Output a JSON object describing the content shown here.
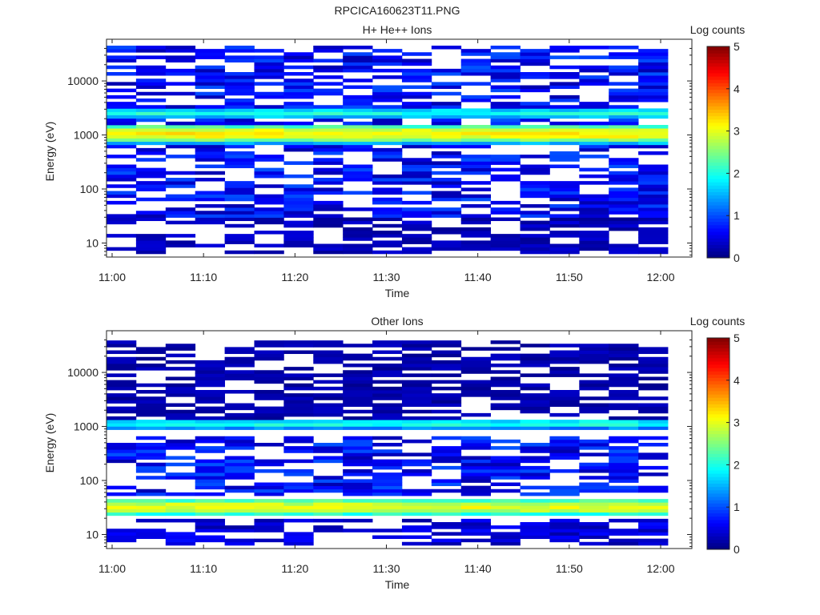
{
  "figure_title": "RPCICA160623T11.PNG",
  "colors": {
    "jet": [
      "#00008f",
      "#0000ff",
      "#00ffff",
      "#ffff00",
      "#ff0000",
      "#800000"
    ],
    "axis": "#222222",
    "empty_cell": "#ffffff"
  },
  "chart_data": [
    {
      "type": "heatmap",
      "title": "H+ He++ Ions",
      "xlabel": "Time",
      "ylabel": "Energy (eV)",
      "x_ticks": [
        "11:00",
        "11:10",
        "11:20",
        "11:30",
        "11:40",
        "11:50",
        "12:00"
      ],
      "y_ticks": [
        "10",
        "100",
        "1000",
        "10000"
      ],
      "y_scale": "log",
      "ylim": [
        5.5,
        45000
      ],
      "colorbar": {
        "label": "Log counts",
        "ticks": [
          "0",
          "1",
          "2",
          "3",
          "4",
          "5"
        ],
        "range": [
          0,
          5
        ]
      },
      "time_bins": 19,
      "energy_bands": [
        {
          "e_low": 700,
          "e_high": 1600,
          "peak_log_counts": 3.2,
          "description": "main proton band"
        },
        {
          "e_low": 2000,
          "e_high": 3200,
          "peak_log_counts": 2.0,
          "description": "secondary band"
        },
        {
          "e_low": 30,
          "e_high": 45000,
          "peak_log_counts": 0.9,
          "description": "background, sparse"
        },
        {
          "e_low": 6,
          "e_high": 30,
          "peak_log_counts": 0.4,
          "description": "low energy, sparse"
        }
      ]
    },
    {
      "type": "heatmap",
      "title": "Other Ions",
      "xlabel": "Time",
      "ylabel": "Energy (eV)",
      "x_ticks": [
        "11:00",
        "11:10",
        "11:20",
        "11:30",
        "11:40",
        "11:50",
        "12:00"
      ],
      "y_ticks": [
        "10",
        "100",
        "1000",
        "10000"
      ],
      "y_scale": "log",
      "ylim": [
        5.5,
        45000
      ],
      "colorbar": {
        "label": "Log counts",
        "ticks": [
          "0",
          "1",
          "2",
          "3",
          "4",
          "5"
        ],
        "range": [
          0,
          5
        ]
      },
      "time_bins": 19,
      "energy_bands": [
        {
          "e_low": 22,
          "e_high": 48,
          "peak_log_counts": 3.0,
          "description": "strong low energy band"
        },
        {
          "e_low": 900,
          "e_high": 1400,
          "peak_log_counts": 2.0,
          "description": "mid energy band"
        },
        {
          "e_low": 50,
          "e_high": 700,
          "peak_log_counts": 0.9,
          "description": "background"
        },
        {
          "e_low": 1400,
          "e_high": 40000,
          "peak_log_counts": 0.3,
          "description": "sparse high energy"
        },
        {
          "e_low": 6,
          "e_high": 20,
          "peak_log_counts": 0.6,
          "description": "low energy, sparse"
        }
      ]
    }
  ]
}
